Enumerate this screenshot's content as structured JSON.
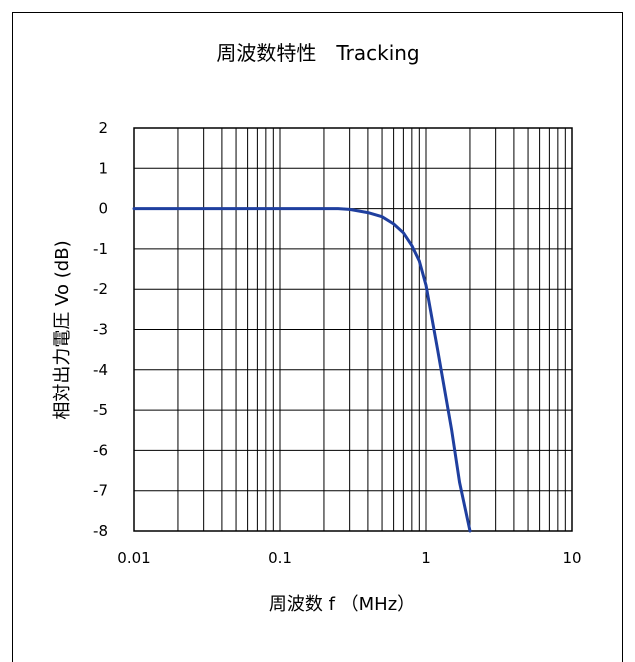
{
  "chart_data": {
    "type": "line",
    "title": "周波数特性　Tracking",
    "xlabel": "周波数 f （MHz）",
    "ylabel": "相対出力電圧 Vo (dB)",
    "xscale": "log",
    "xlim": [
      0.01,
      10
    ],
    "ylim": [
      -8,
      2
    ],
    "grid": true,
    "legend": "none",
    "xtick_labels": [
      "0.01",
      "0.1",
      "1",
      "10"
    ],
    "xtick_values": [
      0.01,
      0.1,
      1,
      10
    ],
    "ytick_values": [
      2,
      1,
      0,
      -1,
      -2,
      -3,
      -4,
      -5,
      -6,
      -7,
      -8
    ],
    "ytick_labels": [
      "2",
      "1",
      "0",
      "-1",
      "-2",
      "-3",
      "-4",
      "-5",
      "-6",
      "-7",
      "-8"
    ],
    "series": [
      {
        "color": "#1f3f9f",
        "x": [
          0.01,
          0.1,
          0.25,
          0.3,
          0.4,
          0.5,
          0.6,
          0.7,
          0.8,
          0.9,
          1.0,
          1.2,
          1.5,
          1.7,
          2.0
        ],
        "y": [
          0,
          0,
          0,
          -0.02,
          -0.1,
          -0.2,
          -0.38,
          -0.6,
          -0.92,
          -1.3,
          -1.9,
          -3.5,
          -5.5,
          -6.8,
          -8.0
        ]
      }
    ]
  }
}
